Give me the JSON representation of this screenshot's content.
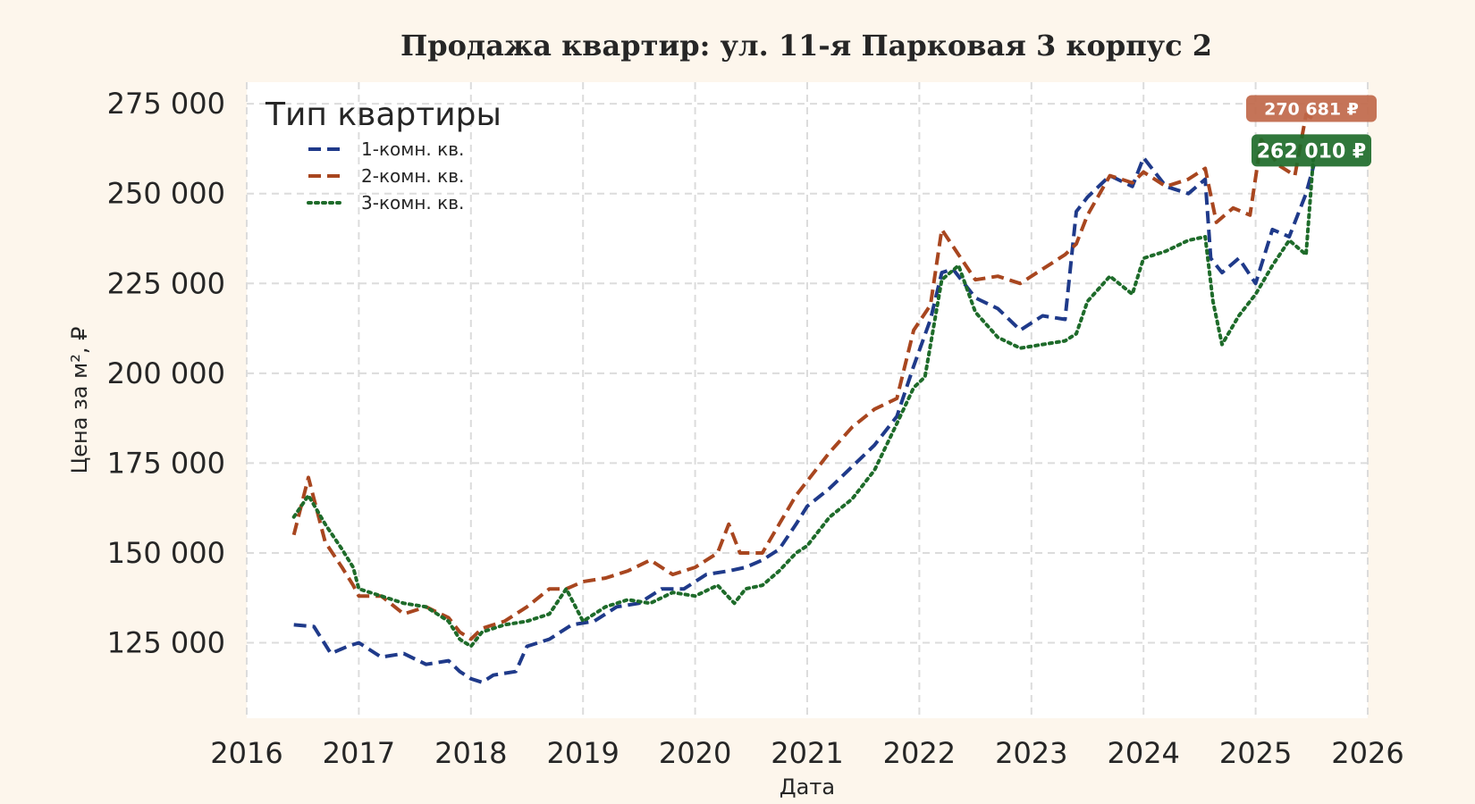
{
  "chart_data": {
    "type": "line",
    "title": "Продажа квартир: ул. 11-я Парковая 3 корпус 2",
    "xlabel": "Дата",
    "ylabel": "Цена за м², ₽",
    "xlim": [
      2016.0,
      2026.0
    ],
    "ylim": [
      104000,
      281000
    ],
    "x_ticks": [
      "2016",
      "2017",
      "2018",
      "2019",
      "2020",
      "2021",
      "2022",
      "2023",
      "2024",
      "2025",
      "2026"
    ],
    "y_ticks": [
      125000,
      150000,
      175000,
      200000,
      225000,
      250000,
      275000
    ],
    "y_tick_labels": [
      "125 000",
      "150 000",
      "175 000",
      "200 000",
      "225 000",
      "250 000",
      "275 000"
    ],
    "grid": true,
    "legend": {
      "title": "Тип квартиры",
      "placement": "top-left"
    },
    "series": [
      {
        "name": "1-комн. кв.",
        "color": "#1f3a8a",
        "dash": "dashed",
        "x": [
          2016.42,
          2016.6,
          2016.75,
          2016.9,
          2017.0,
          2017.2,
          2017.4,
          2017.6,
          2017.8,
          2017.9,
          2018.0,
          2018.1,
          2018.2,
          2018.4,
          2018.5,
          2018.7,
          2018.9,
          2019.1,
          2019.3,
          2019.5,
          2019.7,
          2019.9,
          2020.1,
          2020.3,
          2020.45,
          2020.6,
          2020.75,
          2020.9,
          2021.0,
          2021.2,
          2021.4,
          2021.6,
          2021.8,
          2021.95,
          2022.1,
          2022.2,
          2022.3,
          2022.5,
          2022.7,
          2022.9,
          2023.1,
          2023.3,
          2023.4,
          2023.5,
          2023.7,
          2023.9,
          2024.0,
          2024.2,
          2024.4,
          2024.55,
          2024.6,
          2024.7,
          2024.85,
          2025.0,
          2025.15,
          2025.3,
          2025.45,
          2025.52
        ],
        "y": [
          130000,
          129500,
          122000,
          124000,
          125000,
          121000,
          122000,
          119000,
          120000,
          117000,
          115000,
          114000,
          116000,
          117000,
          124000,
          126000,
          130000,
          131000,
          135000,
          136000,
          140000,
          140000,
          144000,
          145000,
          146000,
          148000,
          151000,
          158000,
          163000,
          168000,
          174000,
          180000,
          188000,
          202000,
          215000,
          228000,
          229000,
          221000,
          218000,
          212000,
          216000,
          215000,
          245000,
          249000,
          255000,
          252000,
          260000,
          252000,
          250000,
          254000,
          232000,
          228000,
          232000,
          225000,
          240000,
          238000,
          250000,
          258000
        ]
      },
      {
        "name": "2-комн. кв.",
        "color": "#a8461f",
        "dash": "dashed",
        "x": [
          2016.42,
          2016.55,
          2016.7,
          2016.85,
          2016.95,
          2017.0,
          2017.2,
          2017.4,
          2017.6,
          2017.8,
          2017.9,
          2018.0,
          2018.1,
          2018.3,
          2018.5,
          2018.7,
          2018.85,
          2019.0,
          2019.2,
          2019.4,
          2019.6,
          2019.8,
          2020.0,
          2020.2,
          2020.3,
          2020.4,
          2020.6,
          2020.75,
          2020.9,
          2021.0,
          2021.2,
          2021.4,
          2021.6,
          2021.8,
          2021.95,
          2022.1,
          2022.2,
          2022.35,
          2022.5,
          2022.7,
          2022.9,
          2023.1,
          2023.3,
          2023.4,
          2023.5,
          2023.7,
          2023.9,
          2024.0,
          2024.2,
          2024.4,
          2024.55,
          2024.65,
          2024.8,
          2024.95,
          2025.05,
          2025.2,
          2025.35,
          2025.45,
          2025.52
        ],
        "y": [
          155000,
          171000,
          153000,
          146000,
          141000,
          138000,
          138000,
          133000,
          135000,
          132000,
          128000,
          126000,
          129000,
          131000,
          135000,
          140000,
          140000,
          142000,
          143000,
          145000,
          148000,
          144000,
          146000,
          150000,
          158000,
          150000,
          150000,
          158000,
          166000,
          170000,
          178000,
          185000,
          190000,
          193000,
          212000,
          219000,
          240000,
          233000,
          226000,
          227000,
          225000,
          229000,
          233000,
          236000,
          244000,
          255000,
          253000,
          256000,
          252000,
          254000,
          257000,
          242000,
          246000,
          244000,
          265000,
          258000,
          255000,
          272000,
          270681
        ]
      },
      {
        "name": "3-комн. кв.",
        "color": "#1e6b2a",
        "dash": "dotted",
        "x": [
          2016.42,
          2016.55,
          2016.7,
          2016.85,
          2016.95,
          2017.0,
          2017.2,
          2017.4,
          2017.6,
          2017.8,
          2017.9,
          2018.0,
          2018.1,
          2018.3,
          2018.5,
          2018.7,
          2018.85,
          2019.0,
          2019.2,
          2019.4,
          2019.6,
          2019.8,
          2020.0,
          2020.2,
          2020.35,
          2020.45,
          2020.6,
          2020.75,
          2020.9,
          2021.0,
          2021.2,
          2021.4,
          2021.6,
          2021.8,
          2021.95,
          2022.05,
          2022.2,
          2022.35,
          2022.5,
          2022.7,
          2022.9,
          2023.1,
          2023.3,
          2023.4,
          2023.5,
          2023.7,
          2023.9,
          2024.0,
          2024.2,
          2024.4,
          2024.55,
          2024.62,
          2024.7,
          2024.85,
          2025.0,
          2025.15,
          2025.3,
          2025.45,
          2025.52
        ],
        "y": [
          160000,
          166000,
          158000,
          151000,
          146000,
          140000,
          138000,
          136000,
          135000,
          131000,
          126000,
          124000,
          128000,
          130000,
          131000,
          133000,
          140000,
          131000,
          135000,
          137000,
          136000,
          139000,
          138000,
          141000,
          136000,
          140000,
          141000,
          145000,
          150000,
          152000,
          160000,
          165000,
          173000,
          186000,
          196000,
          199000,
          226000,
          230000,
          217000,
          210000,
          207000,
          208000,
          209000,
          211000,
          220000,
          227000,
          222000,
          232000,
          234000,
          237000,
          238000,
          220000,
          208000,
          216000,
          222000,
          230000,
          237000,
          233000,
          262010
        ]
      }
    ],
    "annotations": [
      {
        "series": "2-комн. кв.",
        "text": "270 681 ₽",
        "color": "#c0684a"
      },
      {
        "series": "3-комн. кв.",
        "text": "262 010 ₽",
        "color": "#1e6b2a"
      }
    ]
  }
}
